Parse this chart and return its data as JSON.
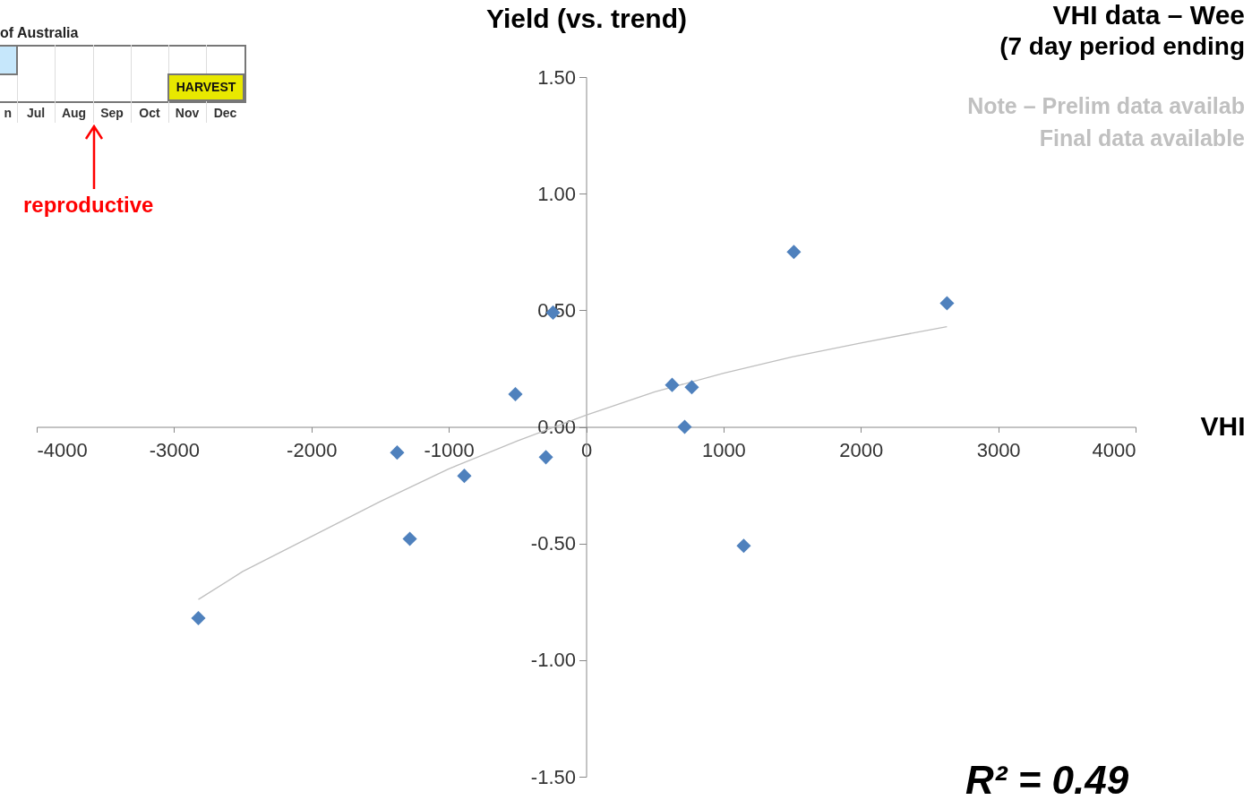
{
  "chart_data": {
    "type": "scatter",
    "title": "VHI data – Wee",
    "subtitle": "(7 day period ending",
    "xlabel": "VHI",
    "ylabel": "Yield (vs. trend)",
    "annotations": [
      "of Australia",
      "HARVEST",
      "n",
      "Jul",
      "Aug",
      "Sep",
      "Oct",
      "Nov",
      "Dec",
      "reproductive",
      "Note – Prelim data availab",
      "Final data available",
      "R² = 0.49"
    ],
    "xlim": [
      -4000,
      4000
    ],
    "xticks": [
      -4000,
      -3000,
      -2000,
      -1000,
      0,
      1000,
      2000,
      3000,
      4000
    ],
    "ylim": [
      -1.5,
      1.5
    ],
    "yticks": [
      {
        "value": -1.5,
        "label": "-1.50"
      },
      {
        "value": -1,
        "label": "-1.00"
      },
      {
        "value": -0.5,
        "label": "-0.50"
      },
      {
        "value": 0,
        "label": "0.00"
      },
      {
        "value": 0.5,
        "label": "0.50"
      },
      {
        "value": 1,
        "label": "1.00"
      },
      {
        "value": 1.5,
        "label": "1.50"
      }
    ],
    "grid": false,
    "marker": "diamond",
    "series": [
      {
        "type": "line",
        "color": "#bfbfbf",
        "marker": "none",
        "x": [
          -2823,
          -2500,
          -2000,
          -1500,
          -1000,
          -500,
          0,
          500,
          1000,
          1500,
          2000,
          2627
        ],
        "values": [
          -0.74,
          -0.62,
          -0.47,
          -0.32,
          -0.18,
          -0.06,
          0.05,
          0.15,
          0.23,
          0.3,
          0.36,
          0.43
        ]
      },
      {
        "color": "#4f81bd",
        "x": [
          -2823,
          -1376,
          -1284,
          -887,
          -515,
          -293,
          -241,
          626,
          717,
          769,
          1147,
          1512,
          2627
        ],
        "values": [
          -0.82,
          -0.11,
          -0.48,
          -0.21,
          0.14,
          -0.13,
          0.49,
          0.18,
          0.0,
          0.17,
          -0.51,
          0.75,
          0.53
        ]
      }
    ]
  }
}
